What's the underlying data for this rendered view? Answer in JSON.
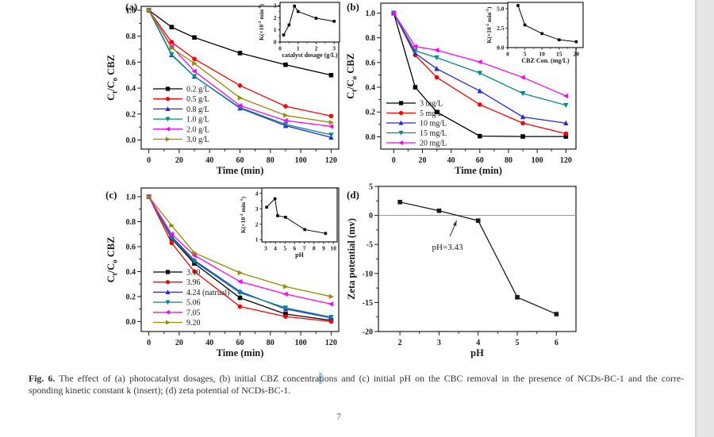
{
  "page": {
    "number": "7"
  },
  "caption": {
    "label": "Fig. 6.",
    "line1_pre": " The effect of (a) photocatalyst dosages, (b) initial CBZ concentra",
    "line1_highlight": "t",
    "line1_post": "ions and (c) initial pH on the CBC removal in the presence of NCDs-BC-1 and the corre-",
    "line2": "sponding kinetic constant k (insert); (d) zeta potential of NCDs-BC-1.",
    "highlight_color": "#a8c8ea"
  },
  "chart_data": [
    {
      "id": "a",
      "label": "(a)",
      "type": "line",
      "xlabel": "Time (min)",
      "ylabel": "C_t/C_o CBZ",
      "xlim": [
        -5,
        125
      ],
      "ylim": [
        -0.07,
        1.03
      ],
      "xticks": [
        "0",
        "20",
        "40",
        "60",
        "80",
        "100",
        "120"
      ],
      "yticks": [
        "0.0",
        "0.2",
        "0.4",
        "0.6",
        "0.8",
        "1.0"
      ],
      "x": [
        0,
        15,
        30,
        60,
        90,
        120
      ],
      "legend": true,
      "series": [
        {
          "name": "0.2 g/L",
          "color": "#000000",
          "marker": "square",
          "values": [
            1.0,
            0.87,
            0.79,
            0.67,
            0.58,
            0.5
          ]
        },
        {
          "name": "0.5 g/L",
          "color": "#fe0000",
          "marker": "circle",
          "values": [
            1.0,
            0.755,
            0.625,
            0.42,
            0.26,
            0.185
          ]
        },
        {
          "name": "0.8 g/L",
          "color": "#2929d6",
          "marker": "triangle-up",
          "values": [
            1.0,
            0.655,
            0.49,
            0.245,
            0.11,
            0.02
          ]
        },
        {
          "name": "1.0 g/L",
          "color": "#008b8b",
          "marker": "triangle-down",
          "values": [
            1.0,
            0.66,
            0.49,
            0.25,
            0.12,
            0.04
          ]
        },
        {
          "name": "2.0 g/L",
          "color": "#ff00ff",
          "marker": "triangle-left",
          "values": [
            1.0,
            0.72,
            0.53,
            0.265,
            0.15,
            0.105
          ]
        },
        {
          "name": "3.0 g/L",
          "color": "#8f8f00",
          "marker": "triangle-right",
          "values": [
            1.0,
            0.71,
            0.59,
            0.325,
            0.19,
            0.135
          ]
        }
      ],
      "inset": {
        "xlabel": "catalyst dosage (g/L)",
        "ylabel": "K(×10^-2 min^-1)",
        "xlim": [
          0,
          3.3
        ],
        "ylim": [
          0,
          3.25
        ],
        "xticks": [
          "0",
          "1",
          "2",
          "3"
        ],
        "yticks": [
          "0",
          "1",
          "2",
          "3"
        ],
        "x": [
          0.2,
          0.5,
          0.8,
          1.0,
          2.0,
          3.0
        ],
        "values": [
          0.58,
          1.4,
          2.95,
          2.5,
          1.95,
          1.7
        ],
        "color": "#000000",
        "marker": "square"
      }
    },
    {
      "id": "b",
      "label": "(b)",
      "type": "line",
      "xlabel": "Time (min)",
      "ylabel": "C_t/C_o CBZ",
      "xlim": [
        -9,
        127
      ],
      "ylim": [
        -0.1,
        1.08
      ],
      "xticks": [
        "0",
        "20",
        "40",
        "60",
        "80",
        "100",
        "120"
      ],
      "yticks": [
        "0.0",
        "0.2",
        "0.4",
        "0.6",
        "0.8",
        "1.0"
      ],
      "x": [
        0,
        15,
        30,
        60,
        90,
        120
      ],
      "legend": true,
      "series": [
        {
          "name": "3 mg/L",
          "color": "#000000",
          "marker": "square",
          "values": [
            1.0,
            0.4,
            0.2,
            0.005,
            0.002,
            0.002
          ]
        },
        {
          "name": "5 mg/L",
          "color": "#fe0000",
          "marker": "circle",
          "values": [
            1.0,
            0.66,
            0.48,
            0.26,
            0.11,
            0.025
          ]
        },
        {
          "name": "10 mg/L",
          "color": "#2929d6",
          "marker": "triangle-up",
          "values": [
            1.0,
            0.675,
            0.55,
            0.37,
            0.16,
            0.11
          ]
        },
        {
          "name": "15 mg/L",
          "color": "#008b8b",
          "marker": "triangle-down",
          "values": [
            1.0,
            0.695,
            0.64,
            0.515,
            0.35,
            0.255
          ]
        },
        {
          "name": "20 mg/L",
          "color": "#ff00ff",
          "marker": "triangle-left",
          "values": [
            1.0,
            0.73,
            0.7,
            0.605,
            0.48,
            0.33
          ]
        }
      ],
      "inset": {
        "xlabel": "CBZ Con. (mg/L)",
        "ylabel": "K(×10^-2 min^-1)",
        "xlim": [
          0,
          22
        ],
        "ylim": [
          0,
          5.8
        ],
        "xticks": [
          "0",
          "5",
          "10",
          "15",
          "20"
        ],
        "yticks": [
          "0.0",
          "2.5",
          "5.0"
        ],
        "x": [
          3,
          5,
          10,
          15,
          20
        ],
        "values": [
          5.4,
          2.9,
          1.8,
          1.0,
          0.75
        ],
        "color": "#000000",
        "marker": "square"
      }
    },
    {
      "id": "c",
      "label": "(c)",
      "type": "line",
      "xlabel": "Time (min)",
      "ylabel": "C_t/C_o CBZ",
      "xlim": [
        -5,
        125
      ],
      "ylim": [
        -0.08,
        1.07
      ],
      "xticks": [
        "0",
        "20",
        "40",
        "60",
        "80",
        "100",
        "120"
      ],
      "yticks": [
        "0.0",
        "0.2",
        "0.4",
        "0.6",
        "0.8",
        "1.0"
      ],
      "x": [
        0,
        15,
        30,
        60,
        90,
        120
      ],
      "legend": true,
      "series": [
        {
          "name": "3.10",
          "color": "#000000",
          "marker": "square",
          "values": [
            1.0,
            0.665,
            0.465,
            0.19,
            0.06,
            0.01
          ]
        },
        {
          "name": "3.96",
          "color": "#fe0000",
          "marker": "circle",
          "values": [
            1.0,
            0.63,
            0.4,
            0.12,
            0.04,
            0.0
          ]
        },
        {
          "name": "4.24 (natrual)",
          "color": "#2929d6",
          "marker": "triangle-up",
          "values": [
            1.0,
            0.68,
            0.49,
            0.24,
            0.1,
            0.03
          ]
        },
        {
          "name": "5.06",
          "color": "#008b8b",
          "marker": "triangle-down",
          "values": [
            1.0,
            0.67,
            0.48,
            0.23,
            0.11,
            0.035
          ]
        },
        {
          "name": "7.05",
          "color": "#ff00ff",
          "marker": "triangle-left",
          "values": [
            1.0,
            0.7,
            0.53,
            0.32,
            0.22,
            0.14
          ]
        },
        {
          "name": "9.20",
          "color": "#8f8f00",
          "marker": "triangle-right",
          "values": [
            1.0,
            0.77,
            0.55,
            0.39,
            0.28,
            0.2
          ]
        }
      ],
      "inset": {
        "xlabel": "pH",
        "ylabel": "K(×10^-2 min^-1)",
        "xlim": [
          2.6,
          10.4
        ],
        "ylim": [
          0.85,
          4.35
        ],
        "xticks": [
          "3",
          "4",
          "5",
          "6",
          "7",
          "8",
          "9",
          "10"
        ],
        "yticks": [
          "1",
          "2",
          "3",
          "4"
        ],
        "x": [
          3.1,
          3.96,
          4.24,
          5.06,
          7.05,
          9.2
        ],
        "values": [
          3.1,
          3.65,
          2.55,
          2.45,
          1.65,
          1.4
        ],
        "color": "#000000",
        "marker": "square"
      }
    },
    {
      "id": "d",
      "label": "(d)",
      "type": "line",
      "xlabel": "pH",
      "ylabel": "Zeta potential (mv)",
      "xlim": [
        1.45,
        6.5
      ],
      "ylim": [
        -20,
        5
      ],
      "xticks": [
        "2",
        "3",
        "4",
        "5",
        "6"
      ],
      "yticks": [
        "-20",
        "-15",
        "-10",
        "-5",
        "0",
        "5"
      ],
      "x": [
        2,
        3,
        4,
        5,
        6
      ],
      "legend": false,
      "refline_y": 0,
      "series": [
        {
          "name": "zeta-potential",
          "color": "#1a1a1a",
          "marker": "square",
          "values": [
            2.3,
            0.8,
            -0.9,
            -14.1,
            -17.0
          ]
        }
      ],
      "annotation": {
        "text": "pH=3.43",
        "text_at": [
          2.82,
          -5.9
        ],
        "arrow_from": [
          3.28,
          -3.6
        ],
        "arrow_to": [
          3.45,
          -0.9
        ]
      }
    }
  ]
}
